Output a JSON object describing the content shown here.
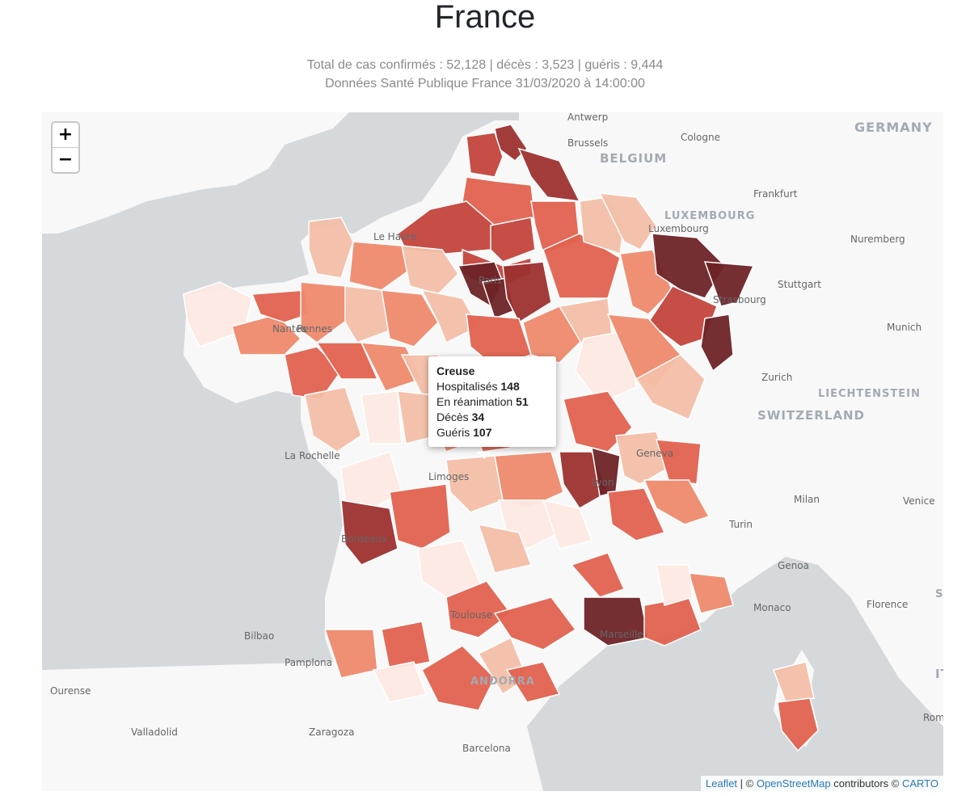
{
  "header": {
    "title": "France",
    "summary": "Total de cas confirmés : 52,128 | décès : 3,523 | guéris : 9,444",
    "source": "Données Santé Publique France 31/03/2020 à 14:00:00"
  },
  "zoom": {
    "in": "+",
    "out": "−"
  },
  "tooltip": {
    "name": "Creuse",
    "rows": [
      {
        "label": "Hospitalisés",
        "value": "148"
      },
      {
        "label": "En réanimation",
        "value": "51"
      },
      {
        "label": "Décès",
        "value": "34"
      },
      {
        "label": "Guéris",
        "value": "107"
      }
    ]
  },
  "attribution": {
    "leaflet": "Leaflet",
    "sep1": " | © ",
    "osm": "OpenStreetMap",
    "contrib": " contributors © ",
    "carto": "CARTO"
  },
  "map_labels": {
    "countries": [
      "GERMANY",
      "BELGIUM",
      "LUXEMBOURG",
      "SWITZERLAND",
      "LIECHTENSTEIN",
      "ANDORRA",
      "SAN MARINO",
      "ITALY"
    ],
    "cities": [
      "Antwerp",
      "Brussels",
      "Cologne",
      "Frankfurt",
      "Luxembourg",
      "Nuremberg",
      "Stuttgart",
      "Munich",
      "Strasbourg",
      "Zurich",
      "Geneva",
      "Milan",
      "Venice",
      "Turin",
      "Genoa",
      "Monaco",
      "Florence",
      "Rome",
      "Lyon",
      "Marseille",
      "Toulouse",
      "Bordeaux",
      "Limoges",
      "La Rochelle",
      "Nantes",
      "Rennes",
      "Le Havre",
      "Paris",
      "Bilbao",
      "Pamplona",
      "Ourense",
      "Valladolid",
      "Zaragoza",
      "Barcelona"
    ]
  },
  "colors": {
    "c1": "#fde9e3",
    "c2": "#f3bfa8",
    "c3": "#ee8a6e",
    "c4": "#e2624f",
    "c5": "#c3443d",
    "c6": "#9d3130",
    "c7": "#6e2327",
    "sea": "#d5d9dc",
    "land": "#f8f8f8"
  }
}
